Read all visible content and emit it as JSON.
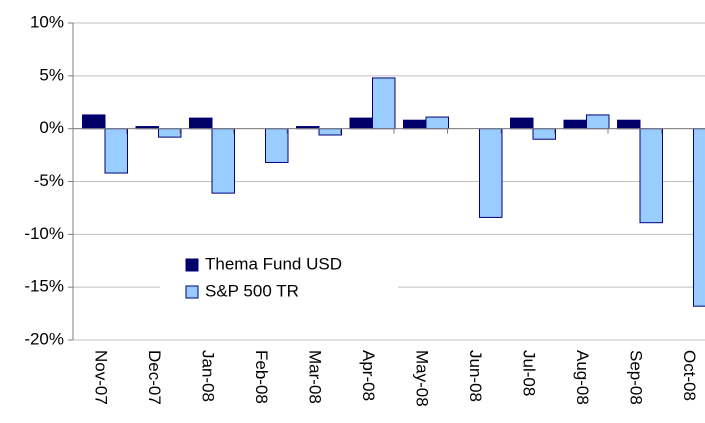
{
  "chart_data": {
    "type": "bar",
    "categories": [
      "Nov-07",
      "Dec-07",
      "Jan-08",
      "Feb-08",
      "Mar-08",
      "Apr-08",
      "May-08",
      "Jun-08",
      "Jul-08",
      "Aug-08",
      "Sep-08",
      "Oct-08"
    ],
    "series": [
      {
        "name": "Thema Fund USD",
        "color": "#000066",
        "values": [
          1.3,
          0.2,
          1.0,
          0,
          0.2,
          1.0,
          0.8,
          0,
          1.0,
          0.8,
          0.8,
          0
        ]
      },
      {
        "name": "S&P 500 TR",
        "color": "#99ccff",
        "values": [
          -4.2,
          -0.8,
          -6.1,
          -3.2,
          -0.6,
          4.8,
          1.1,
          -8.4,
          -1.0,
          1.3,
          -8.9,
          -16.8
        ]
      }
    ],
    "ylim": [
      -20,
      10
    ],
    "yticks": [
      {
        "value": -20,
        "label": "-20%"
      },
      {
        "value": -15,
        "label": "-15%"
      },
      {
        "value": -10,
        "label": "-10%"
      },
      {
        "value": -5,
        "label": "-5%"
      },
      {
        "value": 0,
        "label": "0%"
      },
      {
        "value": 5,
        "label": "5%"
      },
      {
        "value": 10,
        "label": "10%"
      }
    ],
    "grid": true,
    "legend": "lower left"
  }
}
